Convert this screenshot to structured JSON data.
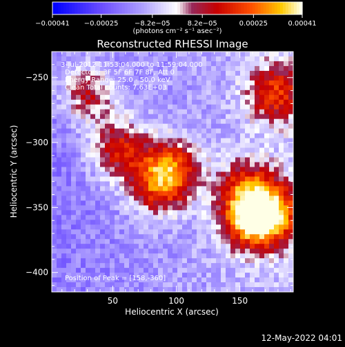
{
  "chart_data": {
    "type": "heatmap",
    "title": "Reconstructed RHESSI Image",
    "xlabel": "Heliocentric X (arcsec)",
    "ylabel": "Heliocentric Y (arcsec)",
    "x_range": [
      2,
      192
    ],
    "y_range": [
      -415,
      -230
    ],
    "x_ticks": [
      50,
      100,
      150
    ],
    "y_ticks": [
      -250,
      -300,
      -350,
      -400
    ],
    "colorbar": {
      "min": -0.00041,
      "max": 0.00041,
      "tick_values": [
        -0.00041,
        -0.00025,
        -8.2e-05,
        8.2e-05,
        0.00025,
        0.00041
      ],
      "tick_labels": [
        "-0.00041",
        "-0.00025",
        "-8.2e-05",
        "8.2e-05",
        "0.00025",
        "0.00041"
      ],
      "units_label": "(photons cm⁻² s⁻¹ asec⁻²)"
    },
    "info_lines": [
      "3-Jul-2012 11:53:04.000 to 11:59:04.000",
      "Detectors: 3F 5F 6F 7F 8F, Att 0",
      "Energy Range: 25.0 - 50.0 keV",
      "Clean  Total counts: 7.63E+03"
    ],
    "peak_label": "Position of Peak = [158,-360]",
    "peak_position": [
      158,
      -360
    ],
    "sources": [
      {
        "x": 158,
        "y": -360,
        "peak": 0.00041
      },
      {
        "x": 176,
        "y": -355,
        "peak": 0.00036
      },
      {
        "x": 95,
        "y": -320,
        "peak": 0.00034
      },
      {
        "x": 55,
        "y": -305,
        "peak": 0.0003
      },
      {
        "x": 155,
        "y": -335,
        "peak": 0.00028
      },
      {
        "x": 178,
        "y": -262,
        "peak": 0.0003
      },
      {
        "x": 30,
        "y": -262,
        "peak": 0.00025
      },
      {
        "x": 85,
        "y": -335,
        "peak": 0.00026
      }
    ],
    "grid": false,
    "legend": "none"
  },
  "timestamp": "12-May-2022 04:01"
}
